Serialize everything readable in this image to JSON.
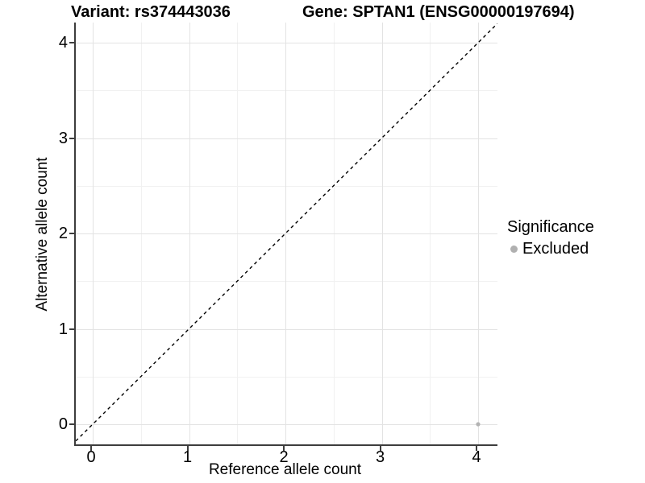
{
  "titles": {
    "variant": "Variant: rs374443036",
    "gene": "Gene: SPTAN1 (ENSG00000197694)"
  },
  "chart_data": {
    "type": "scatter",
    "title_left": "Variant: rs374443036",
    "title_right": "Gene: SPTAN1 (ENSG00000197694)",
    "xlabel": "Reference allele count",
    "ylabel": "Alternative allele count",
    "xlim": [
      -0.17,
      4.2
    ],
    "ylim": [
      -0.21,
      4.21
    ],
    "x_ticks": [
      0,
      1,
      2,
      3,
      4
    ],
    "y_ticks": [
      0,
      1,
      2,
      3,
      4
    ],
    "grid": "major+minor",
    "gridline_major_color": "#e3e3e3",
    "gridline_minor_color": "#f1f1f1",
    "axis_line_color": "#3d3d3d",
    "reference_line": {
      "type": "identity y=x",
      "style": "dashed",
      "color": "#000000"
    },
    "points": [
      {
        "x": 4,
        "y": 0,
        "significance": "Excluded",
        "color": "#b3b3b3",
        "radius": 2.6
      }
    ],
    "legend": {
      "title": "Significance",
      "position": "right",
      "entries": [
        {
          "label": "Excluded",
          "color": "#b0b0b0"
        }
      ]
    }
  }
}
